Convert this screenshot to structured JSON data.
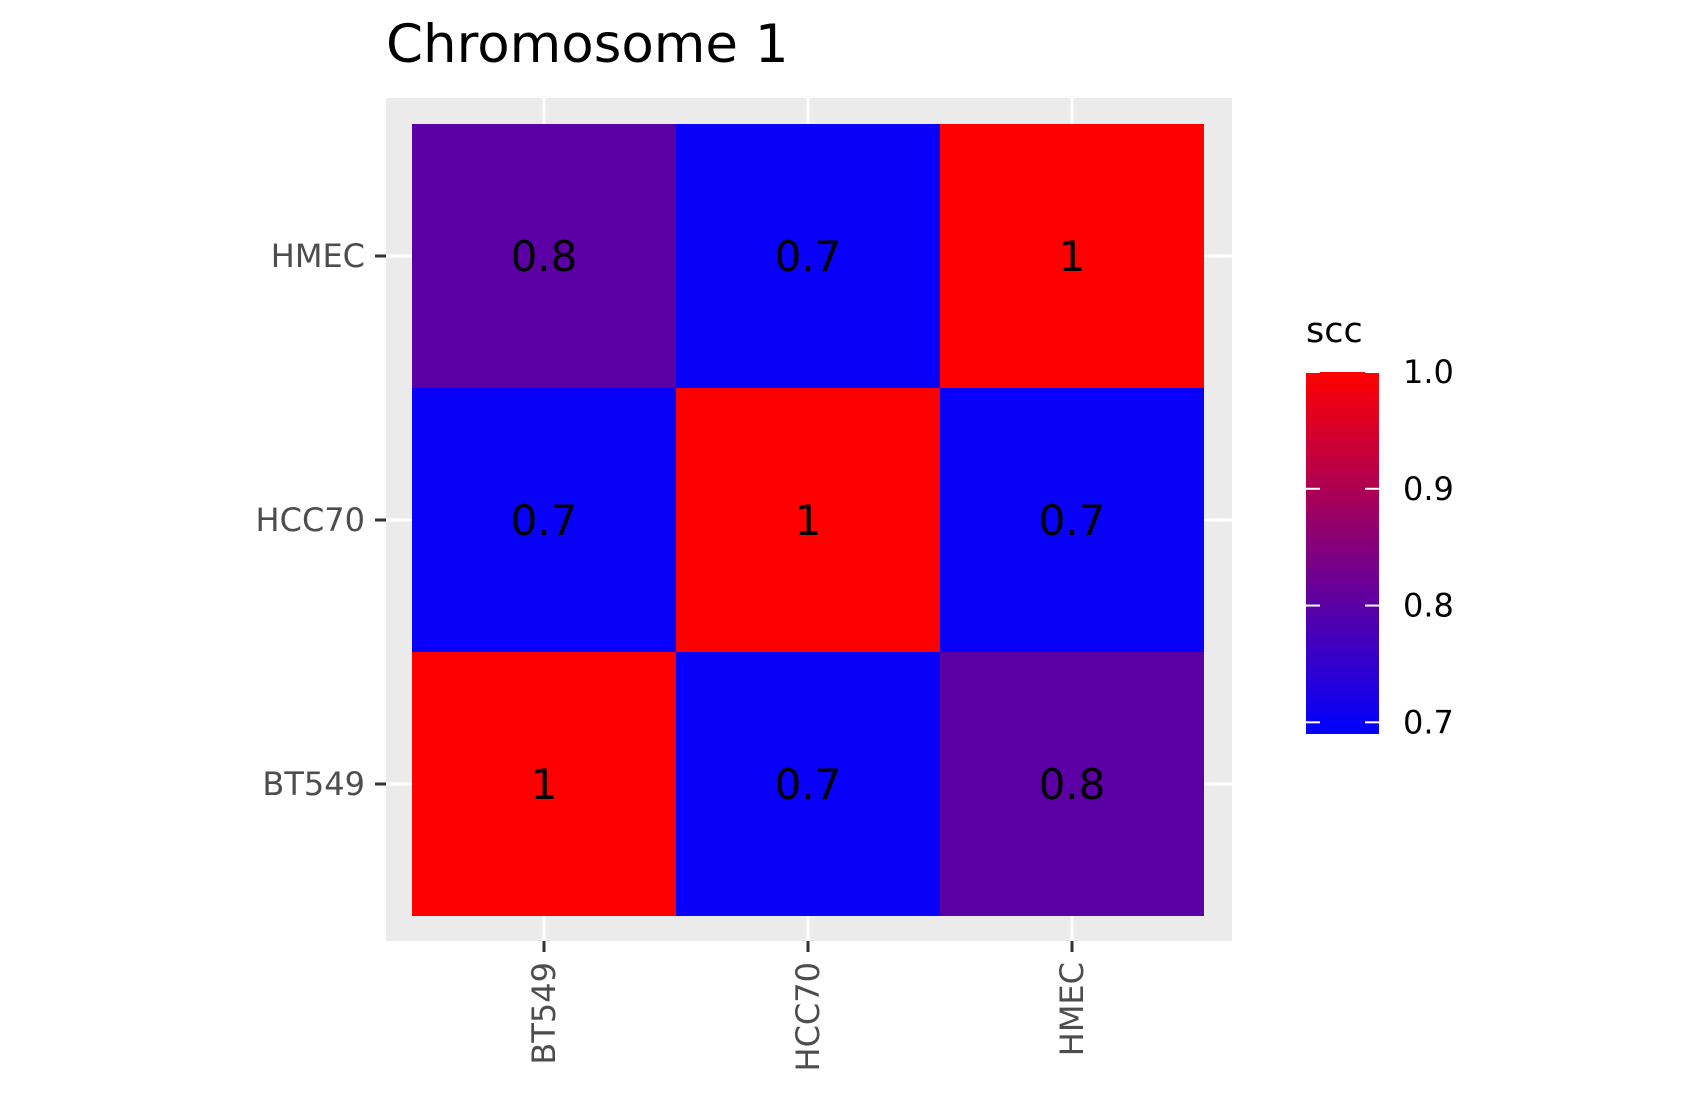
{
  "chart_data": {
    "type": "heatmap",
    "title": "Chromosome 1",
    "x_categories": [
      "BT549",
      "HCC70",
      "HMEC"
    ],
    "y_categories": [
      "BT549",
      "HCC70",
      "HMEC"
    ],
    "values": [
      [
        1.0,
        0.7,
        0.8
      ],
      [
        0.7,
        1.0,
        0.7
      ],
      [
        0.8,
        0.7,
        1.0
      ]
    ],
    "value_labels": [
      [
        "1",
        "0.7",
        "0.8"
      ],
      [
        "0.7",
        "1",
        "0.7"
      ],
      [
        "0.8",
        "0.7",
        "1"
      ]
    ],
    "legend": {
      "title": "scc",
      "placement": "right",
      "ticks": [
        1.0,
        0.9,
        0.8,
        0.7
      ],
      "tick_labels": [
        "1.0",
        "0.9",
        "0.8",
        "0.7"
      ],
      "range": [
        0.69,
        1.0
      ],
      "low_color": "#0000ff",
      "high_color": "#ff0000"
    },
    "panel_background": "#ebebeb",
    "grid": true,
    "grid_color": "#ffffff"
  }
}
